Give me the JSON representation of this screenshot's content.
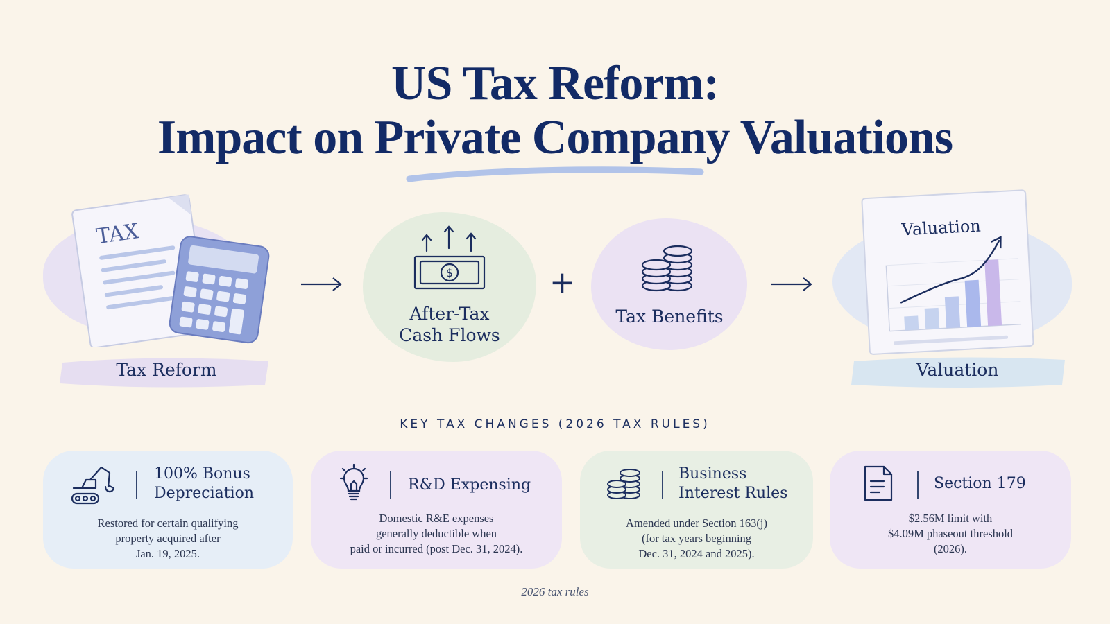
{
  "title": {
    "line1": "US Tax Reform:",
    "line2": "Impact on Private Company Valuations"
  },
  "flow": {
    "tax_reform": {
      "doc_text": "TAX",
      "label": "Tax Reform"
    },
    "cash_flows": {
      "label_line1": "After-Tax",
      "label_line2": "Cash Flows"
    },
    "plus": "+",
    "tax_benefits": {
      "label": "Tax Benefits"
    },
    "valuation": {
      "chart_title": "Valuation",
      "label": "Valuation"
    }
  },
  "key_changes": {
    "heading": "KEY TAX CHANGES (2026 TAX RULES)",
    "cards": [
      {
        "title_line1": "100% Bonus",
        "title_line2": "Depreciation",
        "desc_line1": "Restored for certain qualifying",
        "desc_line2": "property acquired after",
        "desc_line3": "Jan. 19, 2025.",
        "icon": "excavator-icon"
      },
      {
        "title_line1": "R&D Expensing",
        "desc_line1": "Domestic R&E expenses",
        "desc_line2": "generally deductible when",
        "desc_line3": "paid or incurred (post Dec. 31, 2024).",
        "icon": "lightbulb-icon"
      },
      {
        "title_line1": "Business",
        "title_line2": "Interest Rules",
        "desc_line1": "Amended under Section 163(j)",
        "desc_line2": "(for tax years beginning",
        "desc_line3": "Dec. 31, 2024 and 2025).",
        "icon": "coins-icon"
      },
      {
        "title_line1": "Section 179",
        "desc_line1": "$2.56M limit with",
        "desc_line2": "$4.09M phaseout threshold",
        "desc_line3": "(2026).",
        "icon": "document-icon"
      }
    ]
  },
  "footer": "2026 tax rules",
  "colors": {
    "navy": "#122a66",
    "background": "#faf4ea",
    "blue_card": "#e6eef7",
    "lavender_card": "#efe6f5",
    "green_card": "#e8efe4"
  }
}
